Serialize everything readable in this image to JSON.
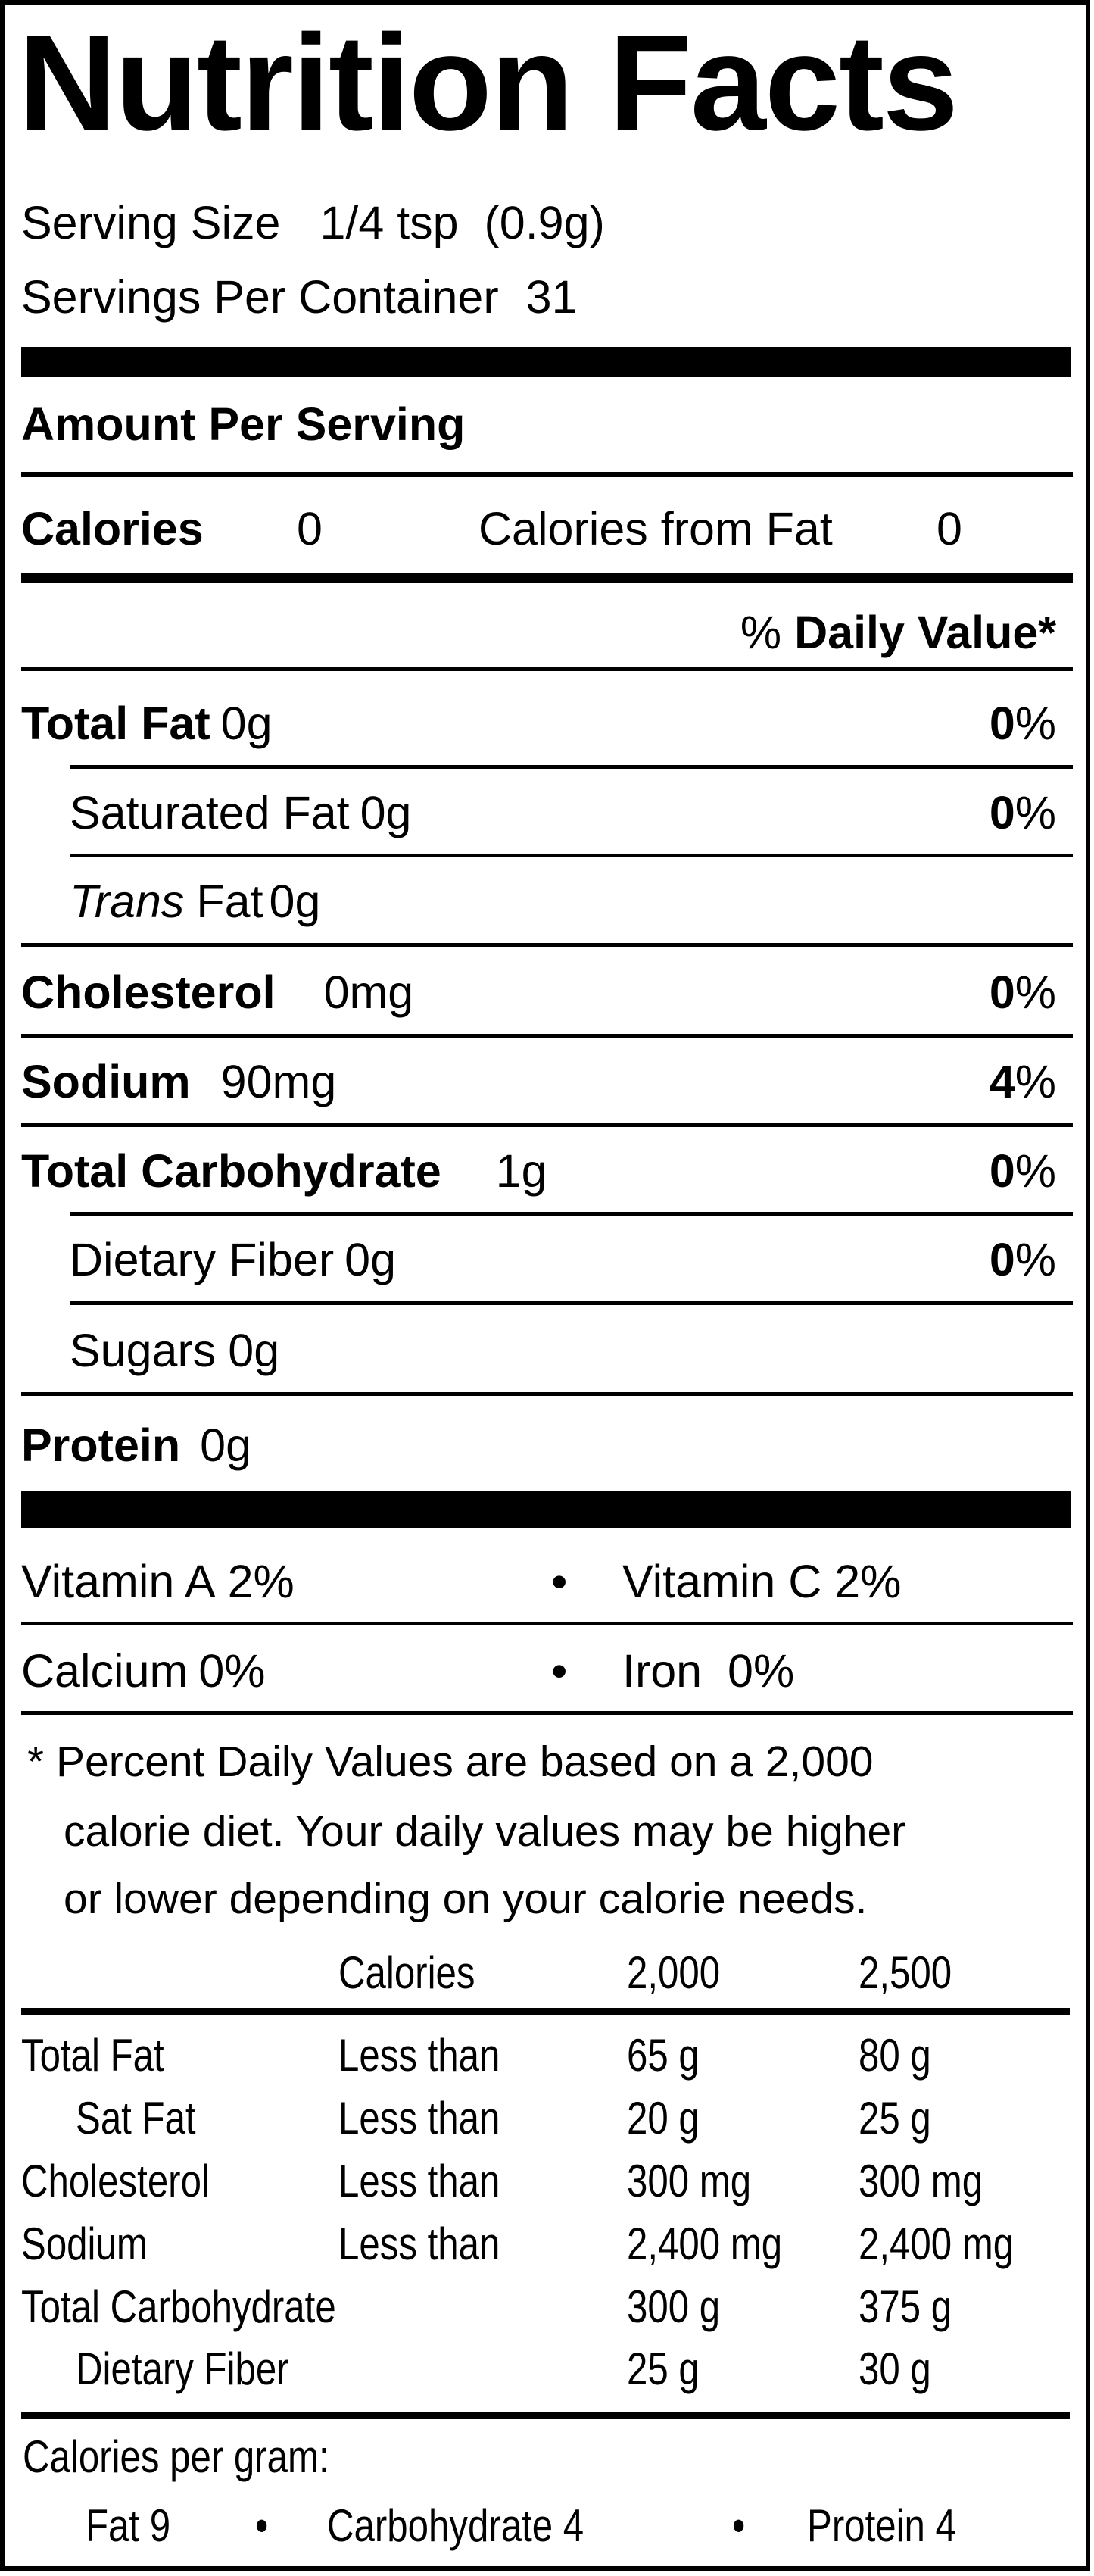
{
  "title": "Nutrition Facts",
  "serving_size": {
    "label": "Serving Size",
    "value": "1/4 tsp  (0.9g)"
  },
  "servings_per_container": {
    "label": "Servings Per Container",
    "value": "31"
  },
  "amount_per_serving": "Amount Per Serving",
  "calories": {
    "label": "Calories",
    "value": "0",
    "from_fat_label": "Calories from Fat",
    "from_fat_value": "0"
  },
  "daily_value_header": {
    "prefix": "%",
    "label": "Daily Value*"
  },
  "nutrients": [
    {
      "name": "Total Fat",
      "amount": "0g",
      "dv": "0",
      "unit": "%"
    },
    {
      "name": "Saturated Fat",
      "amount": "0g",
      "dv": "0",
      "unit": "%"
    },
    {
      "name_italic": "Trans",
      "name": "Fat",
      "amount": "0g"
    },
    {
      "name": "Cholesterol",
      "amount": "0mg",
      "dv": "0",
      "unit": "%"
    },
    {
      "name": "Sodium",
      "amount": "90mg",
      "dv": "4",
      "unit": "%"
    },
    {
      "name": "Total Carbohydrate",
      "amount": "1g",
      "dv": "0",
      "unit": "%"
    },
    {
      "name": "Dietary Fiber",
      "amount": "0g",
      "dv": "0",
      "unit": "%"
    },
    {
      "name": "Sugars",
      "amount": "0g"
    },
    {
      "name": "Protein",
      "amount": "0g"
    }
  ],
  "vitamins": [
    {
      "name": "Vitamin A",
      "value": "2%"
    },
    {
      "name": "Vitamin C",
      "value": "2%"
    },
    {
      "name": "Calcium",
      "value": "0%"
    },
    {
      "name": "Iron",
      "value": "0%"
    }
  ],
  "bullet": "•",
  "footnote": [
    "* Percent Daily Values are based on a 2,000",
    "calorie diet. Your daily values may be higher",
    "or lower depending on your calorie needs."
  ],
  "reference_table": {
    "header": [
      "Calories",
      "2,000",
      "2,500"
    ],
    "rows": [
      [
        "Total Fat",
        "Less than",
        "65 g",
        "80 g"
      ],
      [
        "Sat Fat",
        "Less than",
        "20 g",
        "25 g"
      ],
      [
        "Cholesterol",
        "Less than",
        "300 mg",
        "300 mg"
      ],
      [
        "Sodium",
        "Less than",
        "2,400 mg",
        "2,400 mg"
      ],
      [
        "Total Carbohydrate",
        "",
        "300 g",
        "375 g"
      ],
      [
        "Dietary Fiber",
        "",
        "25 g",
        "30 g"
      ]
    ]
  },
  "calories_per_gram": {
    "label": "Calories per gram:",
    "items": [
      "Fat 9",
      "Carbohydrate 4",
      "Protein 4"
    ]
  }
}
